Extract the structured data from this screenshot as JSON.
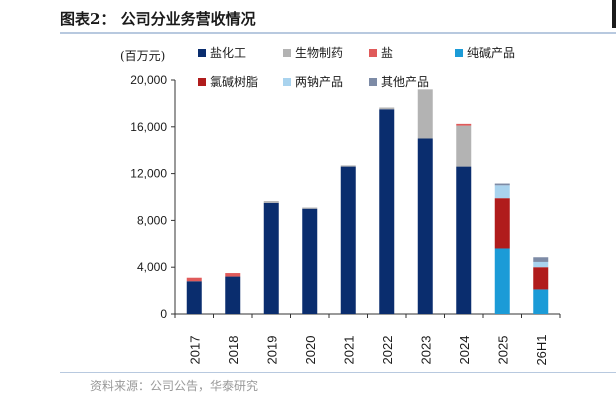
{
  "figure": {
    "title": "图表2：  公司分业务营收情况",
    "source": "资料来源：公司公告，华泰研究"
  },
  "colors": {
    "盐化工": "#0a2d6e",
    "生物制药": "#b3b3b3",
    "盐": "#e05a5a",
    "纯碱产品": "#1b9bd7",
    "氯碱树脂": "#b01c1c",
    "两钠产品": "#a9d3ee",
    "其他产品": "#7d8ba6"
  },
  "chart_data": {
    "type": "bar",
    "stacked": true,
    "unit_label": "(百万元)",
    "categories": [
      "2017",
      "2018",
      "2019",
      "2020",
      "2021",
      "2022",
      "2023",
      "2024",
      "2025",
      "26H1"
    ],
    "ylim": [
      0,
      20000
    ],
    "yticks": [
      "0",
      "4,000",
      "8,000",
      "12,000",
      "16,000",
      "20,000"
    ],
    "ytick_values": [
      0,
      4000,
      8000,
      12000,
      16000,
      20000
    ],
    "legend_placement": "top",
    "grid": false,
    "series": [
      {
        "name": "盐化工",
        "values": [
          2800,
          3200,
          9500,
          9000,
          12600,
          17500,
          15000,
          12600,
          0,
          0
        ]
      },
      {
        "name": "生物制药",
        "values": [
          0,
          0,
          150,
          100,
          100,
          150,
          4200,
          3500,
          0,
          0
        ]
      },
      {
        "name": "盐",
        "values": [
          300,
          300,
          0,
          0,
          0,
          0,
          0,
          150,
          0,
          0
        ]
      },
      {
        "name": "纯碱产品",
        "values": [
          0,
          0,
          0,
          0,
          0,
          0,
          0,
          0,
          5600,
          2100
        ]
      },
      {
        "name": "氯碱树脂",
        "values": [
          0,
          0,
          0,
          0,
          0,
          0,
          0,
          0,
          4300,
          1900
        ]
      },
      {
        "name": "两钠产品",
        "values": [
          0,
          0,
          0,
          0,
          0,
          0,
          0,
          0,
          1100,
          450
        ]
      },
      {
        "name": "其他产品",
        "values": [
          0,
          0,
          0,
          0,
          0,
          0,
          0,
          0,
          150,
          400
        ]
      }
    ],
    "legend": [
      {
        "name": "盐化工"
      },
      {
        "name": "生物制药"
      },
      {
        "name": "盐"
      },
      {
        "name": "纯碱产品"
      },
      {
        "name": "氯碱树脂"
      },
      {
        "name": "两钠产品"
      },
      {
        "name": "其他产品"
      }
    ]
  }
}
